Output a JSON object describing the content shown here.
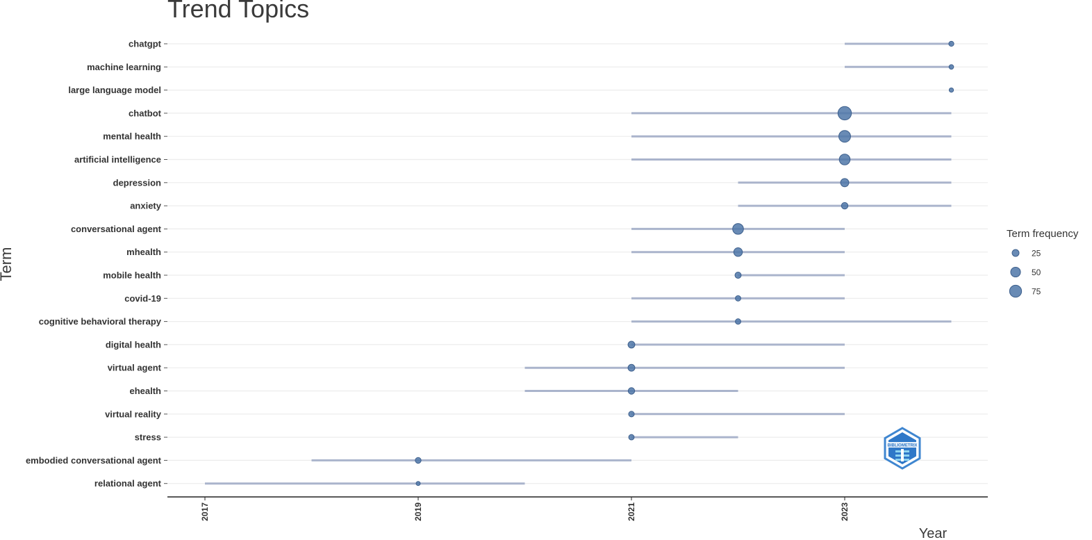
{
  "chart_data": {
    "type": "scatter",
    "title": "Trend Topics",
    "xlabel": "Year",
    "ylabel": "Term",
    "xlim": [
      2016.65,
      2024.35
    ],
    "x_ticks": [
      "2017",
      "2019",
      "2021",
      "2023"
    ],
    "grid": "horizontal",
    "legend": {
      "title": "Term frequency",
      "position": "right",
      "sizes": [
        25,
        50,
        75
      ],
      "labels": [
        "25",
        "50",
        "75"
      ]
    },
    "colors": {
      "point": "#4f77a8",
      "range_line": "#aab4cc",
      "grid": "#ececec",
      "axis": "#222222"
    },
    "terms": [
      {
        "term": "chatgpt",
        "year_q1": 2023,
        "year_median": 2024,
        "year_q3": 2024,
        "freq": 12
      },
      {
        "term": "machine learning",
        "year_q1": 2023,
        "year_median": 2024,
        "year_q3": 2024,
        "freq": 10
      },
      {
        "term": "large language model",
        "year_q1": 2024,
        "year_median": 2024,
        "year_q3": 2024,
        "freq": 9
      },
      {
        "term": "chatbot",
        "year_q1": 2021,
        "year_median": 2023,
        "year_q3": 2024,
        "freq": 85
      },
      {
        "term": "mental health",
        "year_q1": 2021,
        "year_median": 2023,
        "year_q3": 2024,
        "freq": 65
      },
      {
        "term": "artificial intelligence",
        "year_q1": 2021,
        "year_median": 2023,
        "year_q3": 2024,
        "freq": 55
      },
      {
        "term": "depression",
        "year_q1": 2022,
        "year_median": 2023,
        "year_q3": 2024,
        "freq": 32
      },
      {
        "term": "anxiety",
        "year_q1": 2022,
        "year_median": 2023,
        "year_q3": 2024,
        "freq": 20
      },
      {
        "term": "conversational agent",
        "year_q1": 2021,
        "year_median": 2022,
        "year_q3": 2023,
        "freq": 55
      },
      {
        "term": "mhealth",
        "year_q1": 2021,
        "year_median": 2022,
        "year_q3": 2023,
        "freq": 35
      },
      {
        "term": "mobile health",
        "year_q1": 2022,
        "year_median": 2022,
        "year_q3": 2023,
        "freq": 18
      },
      {
        "term": "covid-19",
        "year_q1": 2021,
        "year_median": 2022,
        "year_q3": 2023,
        "freq": 14
      },
      {
        "term": "cognitive behavioral therapy",
        "year_q1": 2021,
        "year_median": 2022,
        "year_q3": 2024,
        "freq": 14
      },
      {
        "term": "digital health",
        "year_q1": 2021,
        "year_median": 2021,
        "year_q3": 2023,
        "freq": 22
      },
      {
        "term": "virtual agent",
        "year_q1": 2020,
        "year_median": 2021,
        "year_q3": 2023,
        "freq": 22
      },
      {
        "term": "ehealth",
        "year_q1": 2020,
        "year_median": 2021,
        "year_q3": 2022,
        "freq": 20
      },
      {
        "term": "virtual reality",
        "year_q1": 2021,
        "year_median": 2021,
        "year_q3": 2023,
        "freq": 15
      },
      {
        "term": "stress",
        "year_q1": 2021,
        "year_median": 2021,
        "year_q3": 2022,
        "freq": 14
      },
      {
        "term": "embodied conversational agent",
        "year_q1": 2018,
        "year_median": 2019,
        "year_q3": 2021,
        "freq": 16
      },
      {
        "term": "relational agent",
        "year_q1": 2017,
        "year_median": 2019,
        "year_q3": 2020,
        "freq": 8
      }
    ]
  },
  "watermark": {
    "logo": "bibliometrix-logo",
    "text": "BIBLIOMETRIX"
  }
}
